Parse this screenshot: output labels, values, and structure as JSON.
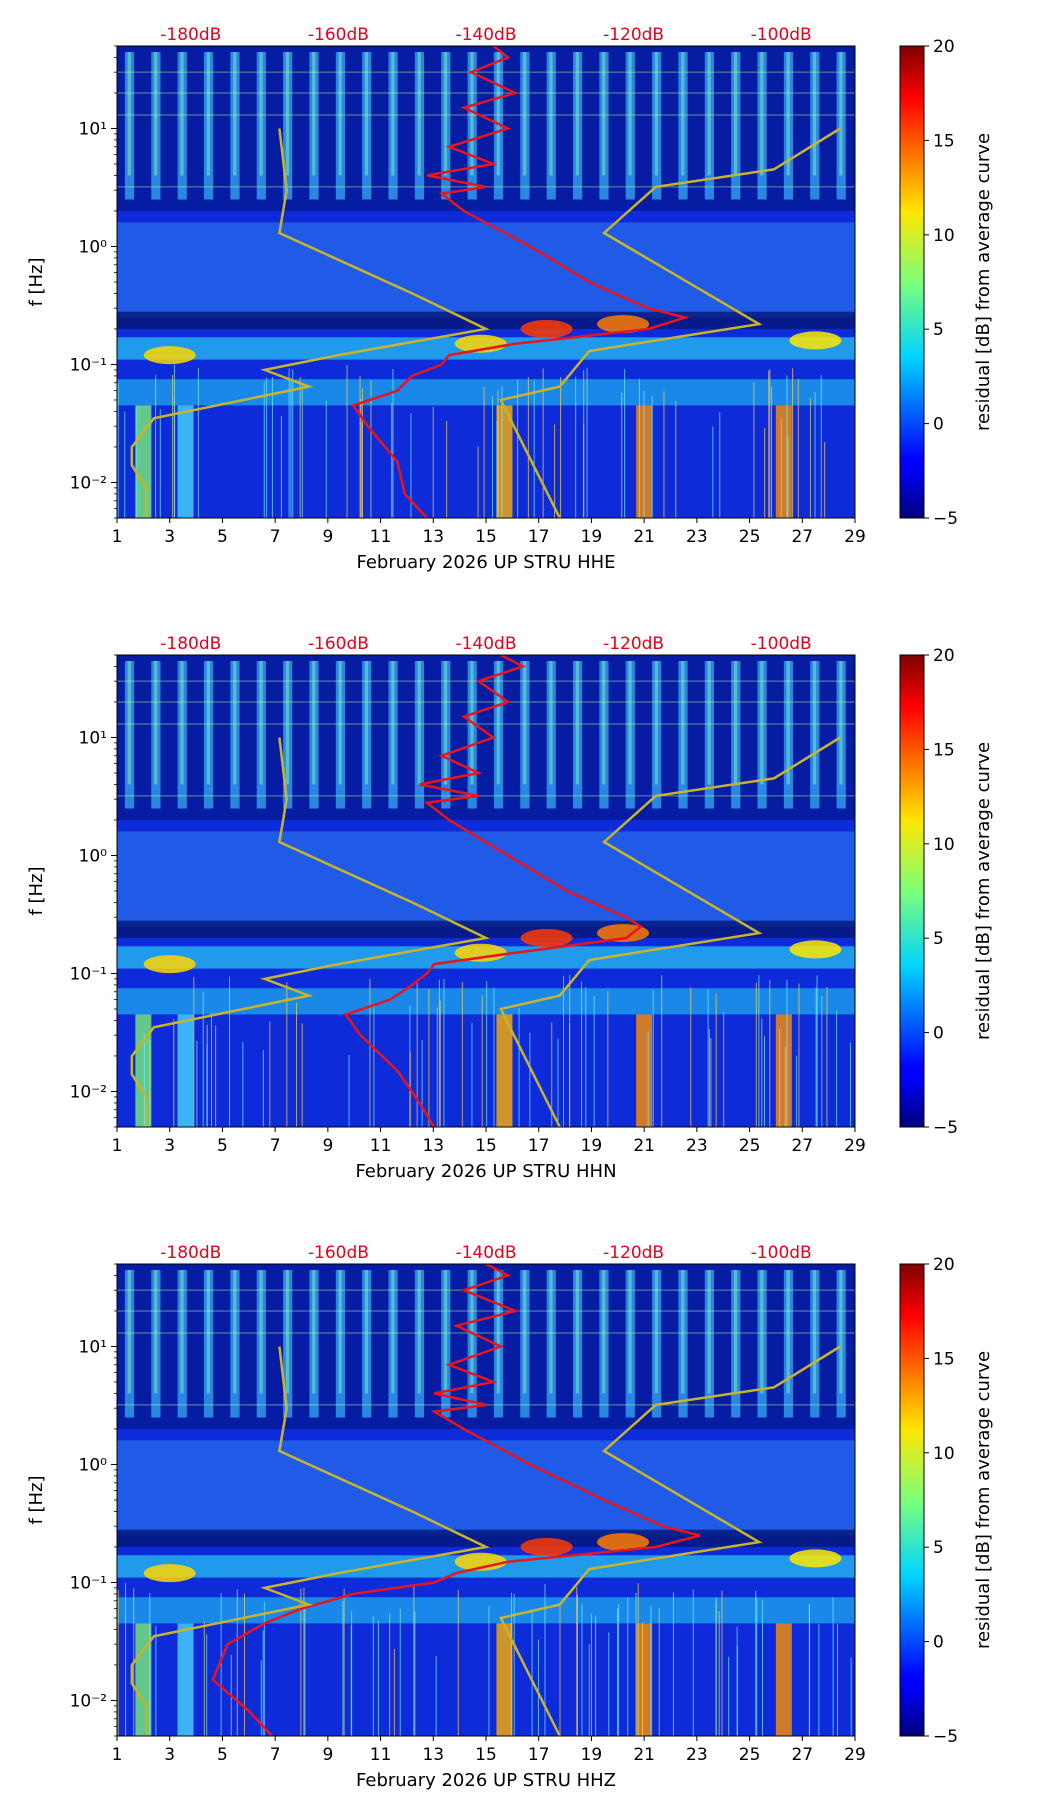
{
  "figure": {
    "colorbar": {
      "label": "residual [dB] from average curve",
      "min": -5,
      "max": 20,
      "ticks": [
        -5,
        0,
        5,
        10,
        15,
        20
      ],
      "tick_labels": [
        "−5",
        "0",
        "5",
        "10",
        "15",
        "20"
      ],
      "colormap": "jet"
    },
    "top_db_labels": [
      "-180dB",
      "-160dB",
      "-140dB",
      "-120dB",
      "-100dB"
    ],
    "top_db_values": [
      -180,
      -160,
      -140,
      -120,
      -100
    ],
    "top_db_range": [
      -190,
      -90
    ],
    "y_tick_labels": [
      "10⁻²",
      "10⁻¹",
      "10⁰",
      "10¹"
    ],
    "x_tick_labels": [
      "1",
      "3",
      "5",
      "7",
      "9",
      "11",
      "13",
      "15",
      "17",
      "19",
      "21",
      "23",
      "25",
      "27",
      "29"
    ],
    "ylabel": "f [Hz]",
    "colors": {
      "psd_curve": "#e8141e",
      "noise_model": "#c8b42c",
      "label_red": "#e8001b"
    }
  },
  "chart_data": [
    {
      "type": "heatmap",
      "title": "February 2026 UP STRU  HHE",
      "xlabel": "February 2026 UP STRU  HHE",
      "ylabel": "f [Hz]",
      "xlim": [
        1,
        29
      ],
      "ylim": [
        0.005,
        50
      ],
      "yscale": "log",
      "x_ticks": [
        1,
        3,
        5,
        7,
        9,
        11,
        13,
        15,
        17,
        19,
        21,
        23,
        25,
        27,
        29
      ],
      "y_ticks": [
        0.01,
        0.1,
        1,
        10
      ],
      "series": [
        {
          "name": "median PSD (dB, top axis)",
          "color": "#e8141e",
          "points": [
            [
              -139,
              50
            ],
            [
              -137,
              40
            ],
            [
              -142,
              30
            ],
            [
              -136,
              20
            ],
            [
              -143,
              15
            ],
            [
              -137,
              10
            ],
            [
              -145,
              7
            ],
            [
              -139,
              5
            ],
            [
              -148,
              4
            ],
            [
              -140,
              3.2
            ],
            [
              -146,
              2.8
            ],
            [
              -143,
              2
            ],
            [
              -134,
              1
            ],
            [
              -126,
              0.5
            ],
            [
              -118,
              0.3
            ],
            [
              -113,
              0.25
            ],
            [
              -118,
              0.2
            ],
            [
              -136,
              0.15
            ],
            [
              -145,
              0.12
            ],
            [
              -146,
              0.1
            ],
            [
              -150,
              0.08
            ],
            [
              -152,
              0.06
            ],
            [
              -158,
              0.045
            ],
            [
              -156,
              0.03
            ],
            [
              -152,
              0.015
            ],
            [
              -151,
              0.008
            ],
            [
              -148,
              0.005
            ]
          ]
        },
        {
          "name": "noise model (dB, top axis)",
          "color": "#c8b42c",
          "points": [
            [
              -168,
              10
            ],
            [
              -167,
              3
            ],
            [
              -168,
              1.3
            ],
            [
              -150,
              0.4
            ],
            [
              -140,
              0.2
            ],
            [
              -160,
              0.12
            ],
            [
              -170,
              0.09
            ],
            [
              -164,
              0.065
            ],
            [
              -185,
              0.035
            ],
            [
              -188,
              0.02
            ],
            [
              -188,
              0.014
            ],
            [
              -186,
              0.009
            ],
            [
              -186,
              0.005
            ]
          ]
        },
        {
          "name": "noise model (dB, top axis)",
          "color": "#c8b42c",
          "points": [
            [
              -92,
              10
            ],
            [
              -101,
              4.5
            ],
            [
              -117,
              3.2
            ],
            [
              -124,
              1.3
            ],
            [
              -103,
              0.22
            ],
            [
              -126,
              0.13
            ],
            [
              -130,
              0.065
            ],
            [
              -138,
              0.05
            ],
            [
              -130,
              0.005
            ]
          ]
        }
      ]
    },
    {
      "type": "heatmap",
      "title": "February 2026 UP STRU  HHN",
      "xlabel": "February 2026 UP STRU  HHN",
      "ylabel": "f [Hz]",
      "xlim": [
        1,
        29
      ],
      "ylim": [
        0.005,
        50
      ],
      "yscale": "log",
      "x_ticks": [
        1,
        3,
        5,
        7,
        9,
        11,
        13,
        15,
        17,
        19,
        21,
        23,
        25,
        27,
        29
      ],
      "y_ticks": [
        0.01,
        0.1,
        1,
        10
      ],
      "series": [
        {
          "name": "median PSD (dB, top axis)",
          "color": "#e8141e",
          "points": [
            [
              -138,
              50
            ],
            [
              -135,
              40
            ],
            [
              -141,
              30
            ],
            [
              -137,
              20
            ],
            [
              -143,
              15
            ],
            [
              -139,
              10
            ],
            [
              -146,
              7
            ],
            [
              -141,
              5
            ],
            [
              -149,
              4
            ],
            [
              -141,
              3.2
            ],
            [
              -148,
              2.8
            ],
            [
              -145,
              2
            ],
            [
              -137,
              1
            ],
            [
              -129,
              0.5
            ],
            [
              -121,
              0.3
            ],
            [
              -119,
              0.25
            ],
            [
              -121,
              0.2
            ],
            [
              -136,
              0.15
            ],
            [
              -147,
              0.12
            ],
            [
              -148,
              0.1
            ],
            [
              -150,
              0.08
            ],
            [
              -153,
              0.06
            ],
            [
              -159,
              0.045
            ],
            [
              -157,
              0.03
            ],
            [
              -152,
              0.015
            ],
            [
              -149,
              0.008
            ],
            [
              -147,
              0.005
            ]
          ]
        },
        {
          "name": "noise model (dB, top axis)",
          "color": "#c8b42c",
          "points": [
            [
              -168,
              10
            ],
            [
              -167,
              3
            ],
            [
              -168,
              1.3
            ],
            [
              -150,
              0.4
            ],
            [
              -140,
              0.2
            ],
            [
              -160,
              0.12
            ],
            [
              -170,
              0.09
            ],
            [
              -164,
              0.065
            ],
            [
              -185,
              0.035
            ],
            [
              -188,
              0.02
            ],
            [
              -188,
              0.014
            ],
            [
              -186,
              0.009
            ],
            [
              -186,
              0.005
            ]
          ]
        },
        {
          "name": "noise model (dB, top axis)",
          "color": "#c8b42c",
          "points": [
            [
              -92,
              10
            ],
            [
              -101,
              4.5
            ],
            [
              -117,
              3.2
            ],
            [
              -124,
              1.3
            ],
            [
              -103,
              0.22
            ],
            [
              -126,
              0.13
            ],
            [
              -130,
              0.065
            ],
            [
              -138,
              0.05
            ],
            [
              -130,
              0.005
            ]
          ]
        }
      ]
    },
    {
      "type": "heatmap",
      "title": "February 2026 UP STRU  HHZ",
      "xlabel": "February 2026 UP STRU  HHZ",
      "ylabel": "f [Hz]",
      "xlim": [
        1,
        29
      ],
      "ylim": [
        0.005,
        50
      ],
      "yscale": "log",
      "x_ticks": [
        1,
        3,
        5,
        7,
        9,
        11,
        13,
        15,
        17,
        19,
        21,
        23,
        25,
        27,
        29
      ],
      "y_ticks": [
        0.01,
        0.1,
        1,
        10
      ],
      "series": [
        {
          "name": "median PSD (dB, top axis)",
          "color": "#e8141e",
          "points": [
            [
              -140,
              50
            ],
            [
              -137,
              40
            ],
            [
              -143,
              30
            ],
            [
              -136,
              20
            ],
            [
              -144,
              15
            ],
            [
              -138,
              10
            ],
            [
              -145,
              7
            ],
            [
              -139,
              5
            ],
            [
              -147,
              4
            ],
            [
              -140,
              3.2
            ],
            [
              -147,
              2.8
            ],
            [
              -143,
              2
            ],
            [
              -134,
              1
            ],
            [
              -124,
              0.5
            ],
            [
              -116,
              0.3
            ],
            [
              -111,
              0.25
            ],
            [
              -117,
              0.2
            ],
            [
              -137,
              0.15
            ],
            [
              -144,
              0.12
            ],
            [
              -147,
              0.1
            ],
            [
              -158,
              0.08
            ],
            [
              -165,
              0.06
            ],
            [
              -170,
              0.045
            ],
            [
              -175,
              0.03
            ],
            [
              -177,
              0.015
            ],
            [
              -172,
              0.008
            ],
            [
              -169,
              0.005
            ]
          ]
        },
        {
          "name": "noise model (dB, top axis)",
          "color": "#c8b42c",
          "points": [
            [
              -168,
              10
            ],
            [
              -167,
              3
            ],
            [
              -168,
              1.3
            ],
            [
              -150,
              0.4
            ],
            [
              -140,
              0.2
            ],
            [
              -160,
              0.12
            ],
            [
              -170,
              0.09
            ],
            [
              -164,
              0.065
            ],
            [
              -185,
              0.035
            ],
            [
              -188,
              0.02
            ],
            [
              -188,
              0.014
            ],
            [
              -186,
              0.009
            ],
            [
              -186,
              0.005
            ]
          ]
        },
        {
          "name": "noise model (dB, top axis)",
          "color": "#c8b42c",
          "points": [
            [
              -92,
              10
            ],
            [
              -101,
              4.5
            ],
            [
              -117,
              3.2
            ],
            [
              -124,
              1.3
            ],
            [
              -103,
              0.22
            ],
            [
              -126,
              0.13
            ],
            [
              -130,
              0.065
            ],
            [
              -138,
              0.05
            ],
            [
              -130,
              0.005
            ]
          ]
        }
      ]
    }
  ]
}
